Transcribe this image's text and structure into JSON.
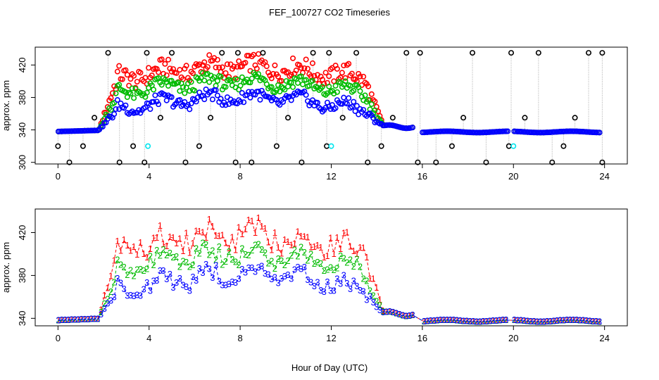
{
  "title": "FEF_100727  CO2 Timeseries",
  "xlabel": "Hour of Day (UTC)",
  "colors": {
    "r1": "#ff0000",
    "r2": "#00bb00",
    "r3": "#0000ff",
    "mark": "#000000",
    "alt": "#00e5ee",
    "line": "#aaaaaa"
  },
  "chart_data": [
    {
      "type": "scatter",
      "title": "FEF_100727  CO2 Timeseries",
      "ylabel": "approx. ppm",
      "xlim": [
        -1,
        25
      ],
      "ylim": [
        298,
        442
      ],
      "xticks": [
        0,
        4,
        8,
        12,
        16,
        20,
        24
      ],
      "yticks": [
        300,
        340,
        380,
        420
      ],
      "outer_marks": [
        {
          "x": 0.0,
          "y": 320
        },
        {
          "x": 0.5,
          "y": 300
        },
        {
          "x": 1.1,
          "y": 320
        },
        {
          "x": 1.6,
          "y": 355
        },
        {
          "x": 2.2,
          "y": 435
        },
        {
          "x": 2.7,
          "y": 300
        },
        {
          "x": 3.3,
          "y": 320
        },
        {
          "x": 3.8,
          "y": 300
        },
        {
          "x": 3.9,
          "y": 435
        },
        {
          "x": 4.5,
          "y": 355
        },
        {
          "x": 5.0,
          "y": 435
        },
        {
          "x": 5.6,
          "y": 300
        },
        {
          "x": 6.2,
          "y": 320
        },
        {
          "x": 6.7,
          "y": 355
        },
        {
          "x": 7.2,
          "y": 435
        },
        {
          "x": 7.8,
          "y": 300
        },
        {
          "x": 7.9,
          "y": 435
        },
        {
          "x": 8.5,
          "y": 300
        },
        {
          "x": 9.0,
          "y": 435
        },
        {
          "x": 9.6,
          "y": 320
        },
        {
          "x": 10.1,
          "y": 355
        },
        {
          "x": 10.7,
          "y": 300
        },
        {
          "x": 11.2,
          "y": 435
        },
        {
          "x": 11.8,
          "y": 320
        },
        {
          "x": 11.9,
          "y": 435
        },
        {
          "x": 12.5,
          "y": 355
        },
        {
          "x": 13.1,
          "y": 435
        },
        {
          "x": 13.6,
          "y": 300
        },
        {
          "x": 14.2,
          "y": 320
        },
        {
          "x": 14.7,
          "y": 355
        },
        {
          "x": 15.3,
          "y": 435
        },
        {
          "x": 15.8,
          "y": 300
        },
        {
          "x": 15.9,
          "y": 435
        },
        {
          "x": 16.6,
          "y": 300
        },
        {
          "x": 17.3,
          "y": 320
        },
        {
          "x": 17.8,
          "y": 355
        },
        {
          "x": 18.2,
          "y": 435
        },
        {
          "x": 18.8,
          "y": 300
        },
        {
          "x": 19.8,
          "y": 320
        },
        {
          "x": 19.9,
          "y": 435
        },
        {
          "x": 20.5,
          "y": 355
        },
        {
          "x": 21.1,
          "y": 435
        },
        {
          "x": 21.7,
          "y": 300
        },
        {
          "x": 22.2,
          "y": 320
        },
        {
          "x": 22.7,
          "y": 355
        },
        {
          "x": 23.3,
          "y": 435
        },
        {
          "x": 23.9,
          "y": 300
        },
        {
          "x": 23.9,
          "y": 435
        }
      ],
      "alt_points": [
        {
          "x": 3.95,
          "y": 320
        },
        {
          "x": 12.0,
          "y": 320
        },
        {
          "x": 20.0,
          "y": 320
        }
      ]
    },
    {
      "type": "scatter",
      "ylabel": "approx. ppm",
      "xlim": [
        -1,
        25
      ],
      "ylim": [
        333,
        442
      ],
      "xticks": [
        0,
        4,
        8,
        12,
        16,
        20,
        24
      ],
      "yticks": [
        340,
        380,
        420
      ],
      "labels": [
        "1",
        "2",
        "3"
      ]
    }
  ]
}
